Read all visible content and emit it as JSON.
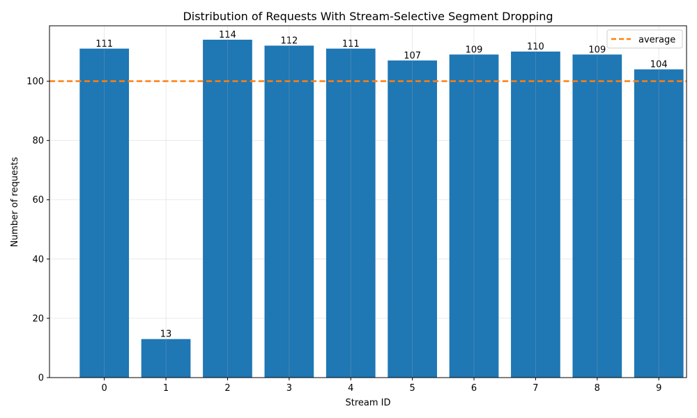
{
  "chart_data": {
    "type": "bar",
    "title": "Distribution of Requests With Stream-Selective Segment Dropping",
    "xlabel": "Stream ID",
    "ylabel": "Number of requests",
    "categories": [
      "0",
      "1",
      "2",
      "3",
      "4",
      "5",
      "6",
      "7",
      "8",
      "9"
    ],
    "values": [
      111,
      13,
      114,
      112,
      111,
      107,
      109,
      110,
      109,
      104
    ],
    "ylim": [
      0,
      118.7
    ],
    "yticks": [
      0,
      20,
      40,
      60,
      80,
      100
    ],
    "average": 100,
    "legend": {
      "label": "average",
      "placement": "top-right"
    },
    "grid": true,
    "colors": {
      "bar": "#1f77b4",
      "average_line": "#ff7f0e"
    }
  }
}
